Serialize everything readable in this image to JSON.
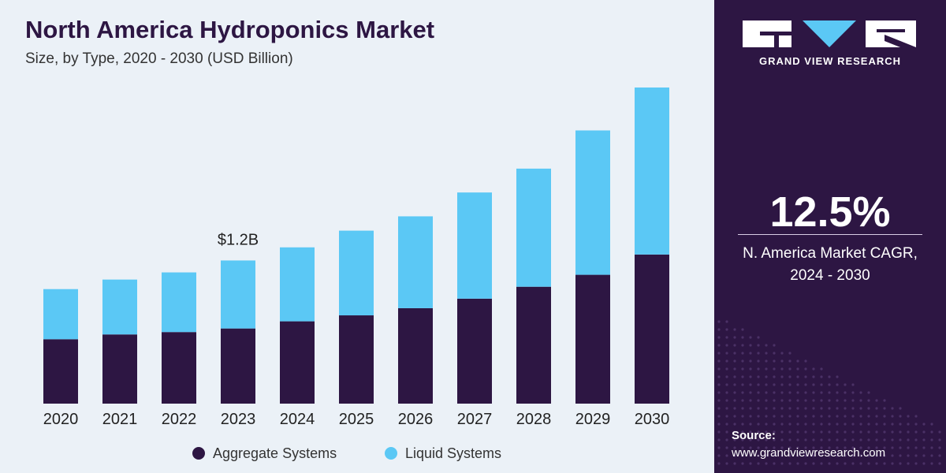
{
  "title": "North America Hydroponics Market",
  "subtitle": "Size, by Type, 2020 - 2030 (USD Billion)",
  "brand": {
    "name": "GRAND VIEW RESEARCH"
  },
  "cagr": {
    "value": "12.5%",
    "label_line1": "N. America Market CAGR,",
    "label_line2": "2024 - 2030"
  },
  "source": {
    "title": "Source:",
    "url": "www.grandviewresearch.com"
  },
  "colors": {
    "aggregate": "#2d1643",
    "liquid": "#5bc8f5",
    "panel": "#2d1643",
    "background": "#ebf1f7"
  },
  "chart_data": {
    "type": "bar",
    "stacked": true,
    "categories": [
      "2020",
      "2021",
      "2022",
      "2023",
      "2024",
      "2025",
      "2026",
      "2027",
      "2028",
      "2029",
      "2030"
    ],
    "series": [
      {
        "name": "Aggregate Systems",
        "values": [
          0.54,
          0.58,
          0.6,
          0.63,
          0.69,
          0.74,
          0.8,
          0.88,
          0.98,
          1.08,
          1.25
        ]
      },
      {
        "name": "Liquid Systems",
        "values": [
          0.42,
          0.46,
          0.5,
          0.57,
          0.62,
          0.71,
          0.77,
          0.89,
          0.99,
          1.21,
          1.4
        ]
      }
    ],
    "annotations": [
      {
        "category": "2023",
        "text": "$1.2B"
      }
    ],
    "ylim": [
      0,
      2.65
    ],
    "legend": "bottom",
    "grid": false
  }
}
